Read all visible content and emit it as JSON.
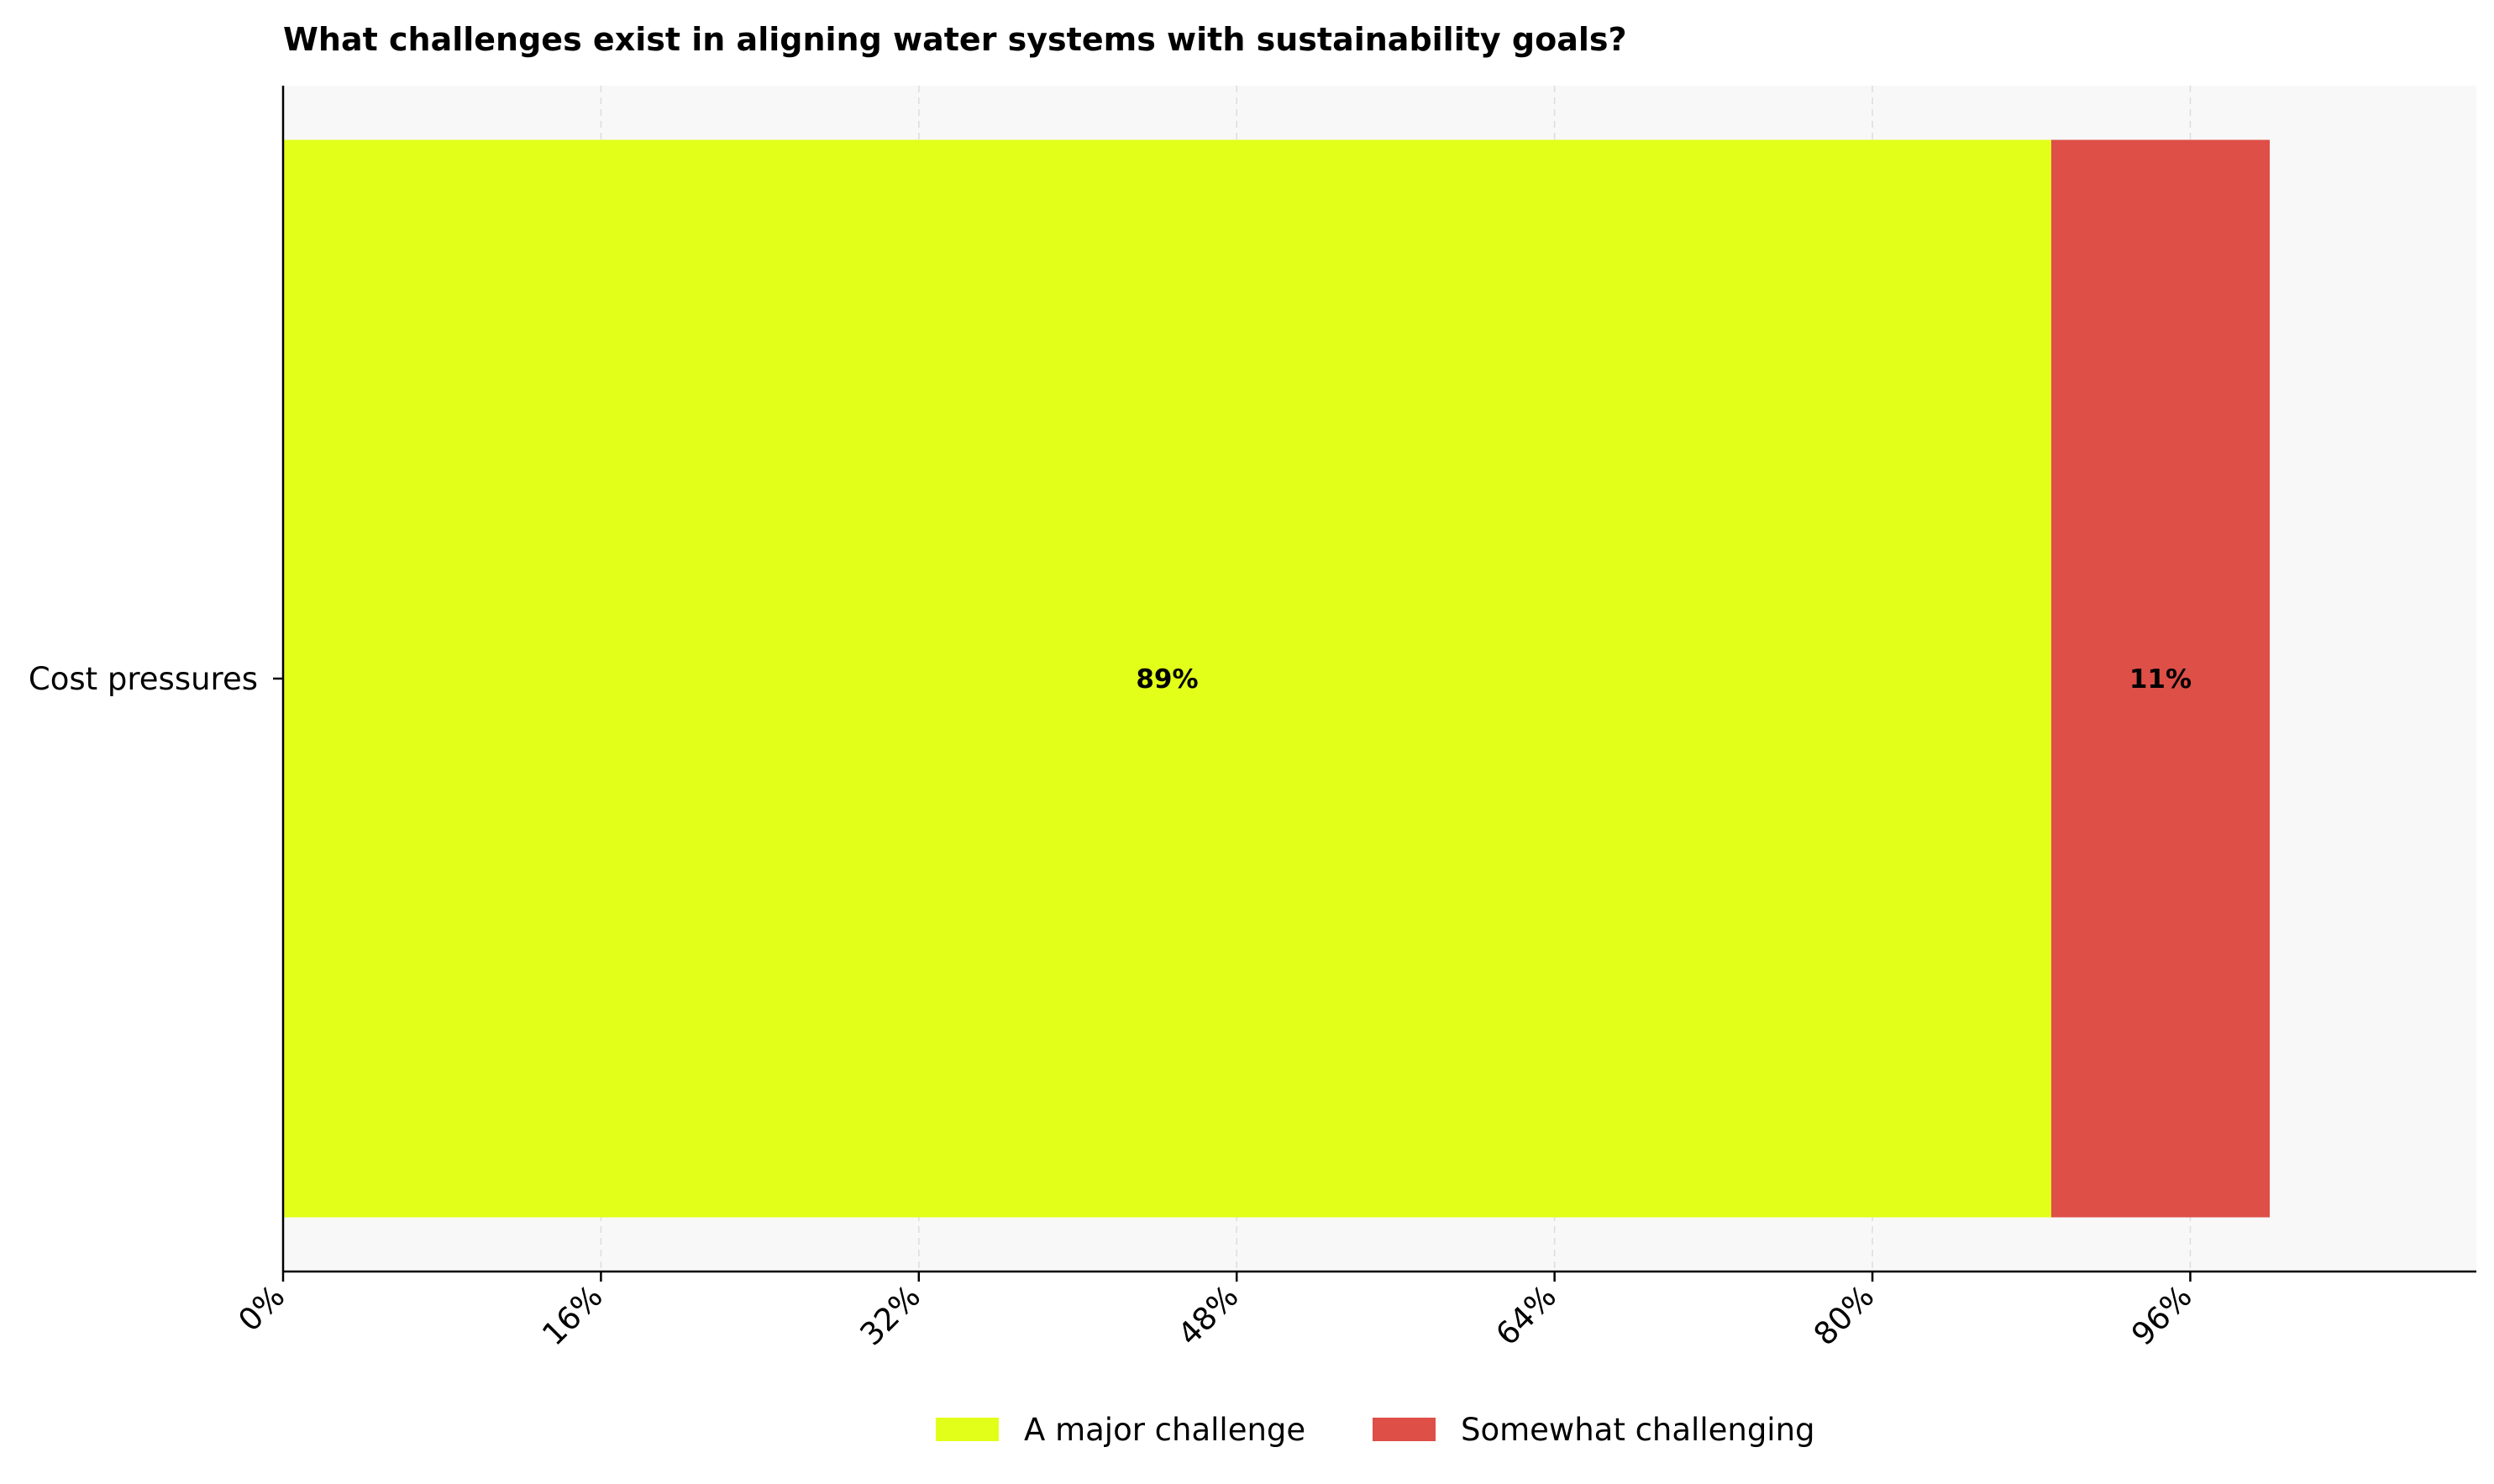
{
  "chart_data": {
    "type": "bar",
    "orientation": "horizontal",
    "stacked": true,
    "title": "What challenges exist in aligning water systems with sustainability goals?",
    "xlabel": "",
    "ylabel": "",
    "categories": [
      "Cost pressures"
    ],
    "series": [
      {
        "name": "A major challenge",
        "values": [
          89
        ],
        "label": "89%",
        "color": "#e2ff1a"
      },
      {
        "name": "Somewhat challenging",
        "values": [
          11
        ],
        "label": "11%",
        "color": "#dd4f47"
      }
    ],
    "xlim": [
      0,
      110.4
    ],
    "xticks": [
      0,
      16,
      32,
      48,
      64,
      80,
      96
    ],
    "xtick_labels": [
      "0%",
      "16%",
      "32%",
      "48%",
      "64%",
      "80%",
      "96%"
    ],
    "grid": "x-dashed",
    "legend_position": "bottom-center",
    "plot_background": "#f8f8f8"
  }
}
